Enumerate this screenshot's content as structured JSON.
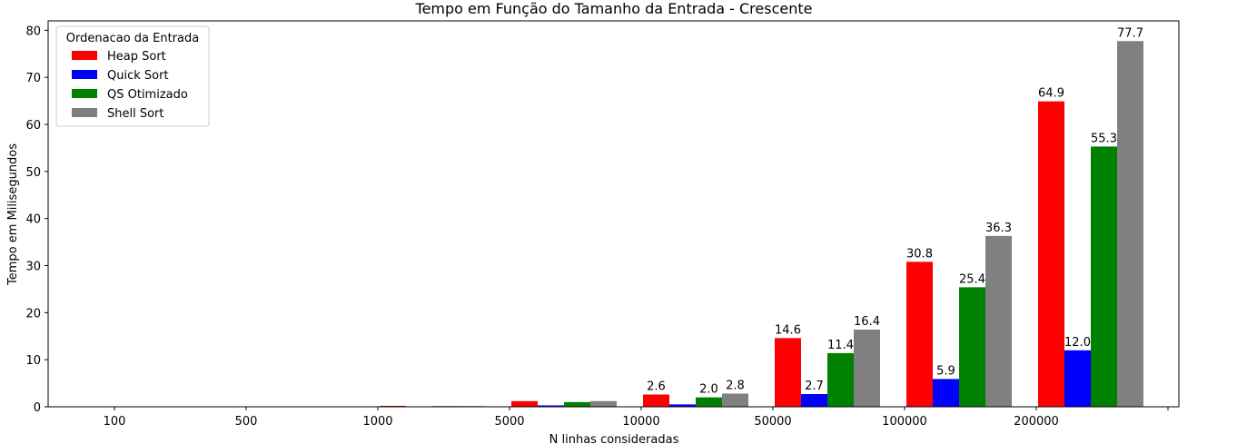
{
  "chart_data": {
    "type": "bar",
    "title": "Tempo em Função do Tamanho da Entrada - Crescente",
    "xlabel": "N linhas consideradas",
    "ylabel": "Tempo em Milisegundos",
    "ylim": [
      0,
      82
    ],
    "yticks": [
      0,
      10,
      20,
      30,
      40,
      50,
      60,
      70,
      80
    ],
    "categories": [
      "100",
      "500",
      "1000",
      "5000",
      "10000",
      "50000",
      "100000",
      "200000"
    ],
    "legend": {
      "title": "Ordenacao da Entrada",
      "placement": "top-left"
    },
    "grid": false,
    "series": [
      {
        "name": "Heap Sort",
        "color": "#ff0000",
        "values": [
          0.02,
          0.08,
          0.2,
          1.2,
          2.6,
          14.6,
          30.8,
          64.9
        ],
        "labels": [
          "",
          "",
          "",
          "",
          "2.6",
          "14.6",
          "30.8",
          "64.9"
        ]
      },
      {
        "name": "Quick Sort",
        "color": "#0000ff",
        "values": [
          0.01,
          0.03,
          0.05,
          0.3,
          0.5,
          2.7,
          5.9,
          12.0
        ],
        "labels": [
          "",
          "",
          "",
          "",
          "",
          "2.7",
          "5.9",
          "12.0"
        ]
      },
      {
        "name": "QS Otimizado",
        "color": "#008000",
        "values": [
          0.01,
          0.05,
          0.15,
          1.0,
          2.0,
          11.4,
          25.4,
          55.3
        ],
        "labels": [
          "",
          "",
          "",
          "",
          "2.0",
          "11.4",
          "25.4",
          "55.3"
        ]
      },
      {
        "name": "Shell Sort",
        "color": "#808080",
        "values": [
          0.02,
          0.05,
          0.15,
          1.2,
          2.8,
          16.4,
          36.3,
          77.7
        ],
        "labels": [
          "",
          "",
          "",
          "",
          "2.8",
          "16.4",
          "36.3",
          "77.7"
        ]
      }
    ]
  }
}
